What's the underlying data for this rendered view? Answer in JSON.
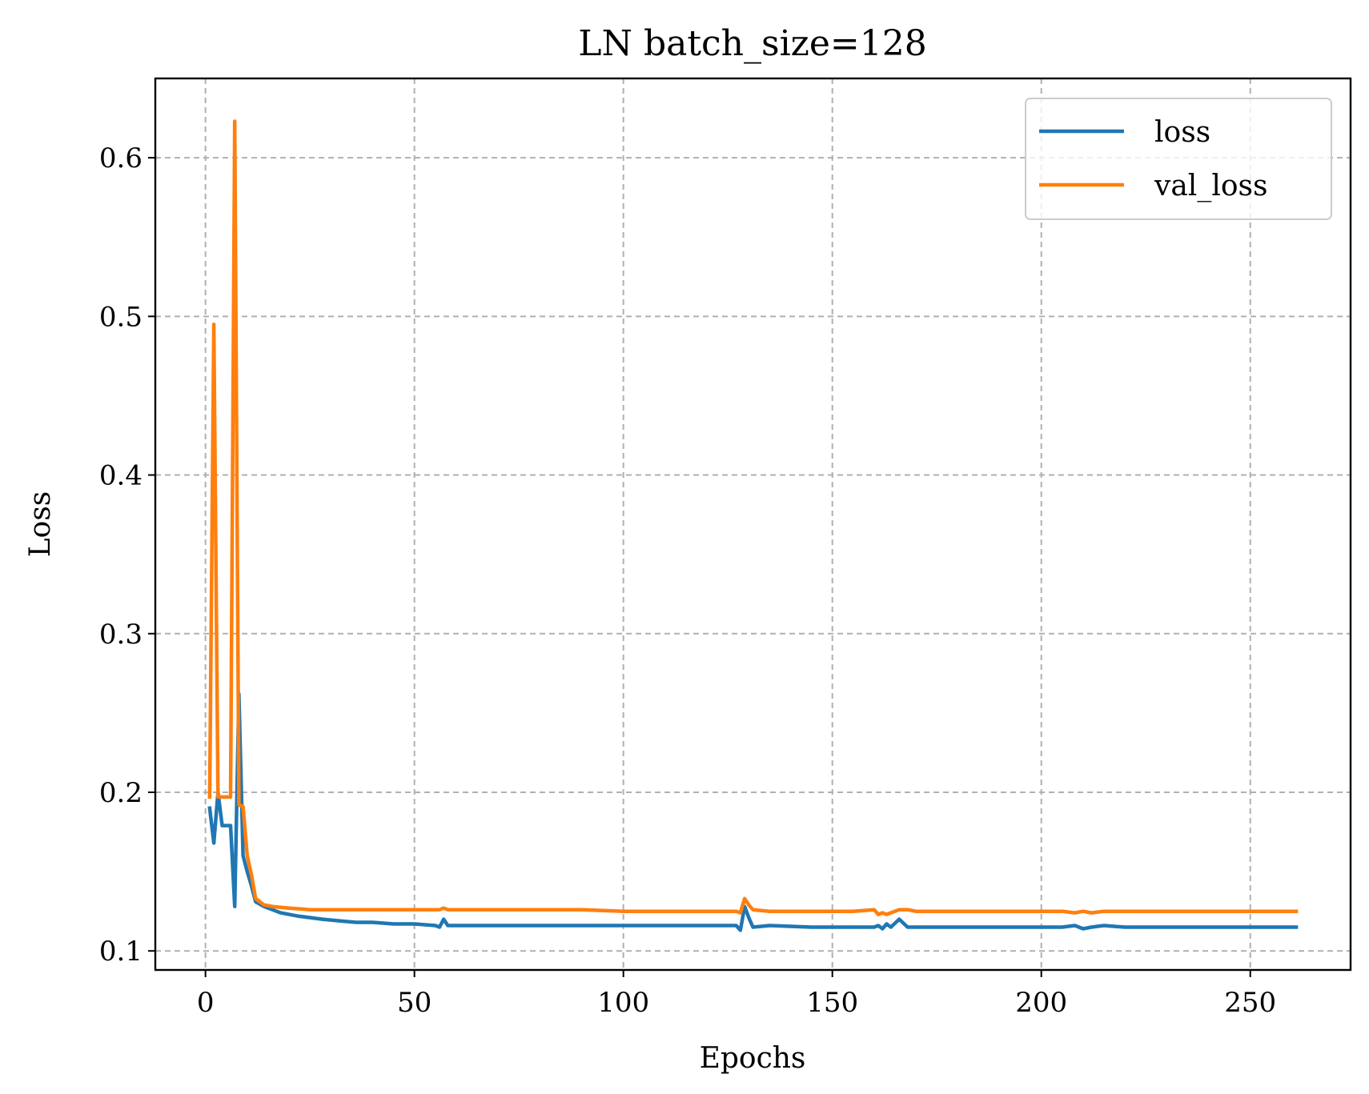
{
  "chart_data": {
    "type": "line",
    "title": "LN batch_size=128",
    "xlabel": "Epochs",
    "ylabel": "Loss",
    "xlim": [
      -12,
      274
    ],
    "ylim": [
      0.088,
      0.65
    ],
    "xticks": [
      0,
      50,
      100,
      150,
      200,
      250
    ],
    "yticks": [
      0.1,
      0.2,
      0.3,
      0.4,
      0.5,
      0.6
    ],
    "xtick_labels": [
      "0",
      "50",
      "100",
      "150",
      "200",
      "250"
    ],
    "ytick_labels": [
      "0.1",
      "0.2",
      "0.3",
      "0.4",
      "0.5",
      "0.6"
    ],
    "grid": true,
    "legend_position": "top-right",
    "series": [
      {
        "name": "loss",
        "color": "#1f77b4",
        "points": [
          [
            1,
            0.19
          ],
          [
            2,
            0.168
          ],
          [
            3,
            0.2
          ],
          [
            4,
            0.179
          ],
          [
            5,
            0.179
          ],
          [
            6,
            0.179
          ],
          [
            7,
            0.128
          ],
          [
            8,
            0.262
          ],
          [
            9,
            0.16
          ],
          [
            10,
            0.15
          ],
          [
            11,
            0.141
          ],
          [
            12,
            0.131
          ],
          [
            14,
            0.128
          ],
          [
            16,
            0.126
          ],
          [
            18,
            0.124
          ],
          [
            20,
            0.123
          ],
          [
            22,
            0.122
          ],
          [
            25,
            0.121
          ],
          [
            28,
            0.12
          ],
          [
            32,
            0.119
          ],
          [
            36,
            0.118
          ],
          [
            40,
            0.118
          ],
          [
            45,
            0.117
          ],
          [
            50,
            0.117
          ],
          [
            55,
            0.116
          ],
          [
            56,
            0.115
          ],
          [
            57,
            0.12
          ],
          [
            58,
            0.116
          ],
          [
            60,
            0.116
          ],
          [
            70,
            0.116
          ],
          [
            80,
            0.116
          ],
          [
            90,
            0.116
          ],
          [
            100,
            0.116
          ],
          [
            110,
            0.116
          ],
          [
            120,
            0.116
          ],
          [
            127,
            0.116
          ],
          [
            128,
            0.113
          ],
          [
            129,
            0.128
          ],
          [
            130,
            0.121
          ],
          [
            131,
            0.115
          ],
          [
            135,
            0.116
          ],
          [
            145,
            0.115
          ],
          [
            155,
            0.115
          ],
          [
            160,
            0.115
          ],
          [
            161,
            0.116
          ],
          [
            162,
            0.114
          ],
          [
            163,
            0.117
          ],
          [
            164,
            0.115
          ],
          [
            166,
            0.12
          ],
          [
            168,
            0.115
          ],
          [
            175,
            0.115
          ],
          [
            185,
            0.115
          ],
          [
            195,
            0.115
          ],
          [
            205,
            0.115
          ],
          [
            208,
            0.116
          ],
          [
            210,
            0.114
          ],
          [
            212,
            0.115
          ],
          [
            215,
            0.116
          ],
          [
            220,
            0.115
          ],
          [
            230,
            0.115
          ],
          [
            240,
            0.115
          ],
          [
            250,
            0.115
          ],
          [
            261,
            0.115
          ]
        ]
      },
      {
        "name": "val_loss",
        "color": "#ff7f0e",
        "points": [
          [
            1,
            0.197
          ],
          [
            2,
            0.495
          ],
          [
            3,
            0.197
          ],
          [
            4,
            0.197
          ],
          [
            5,
            0.197
          ],
          [
            6,
            0.197
          ],
          [
            7,
            0.623
          ],
          [
            8,
            0.192
          ],
          [
            9,
            0.191
          ],
          [
            10,
            0.16
          ],
          [
            11,
            0.148
          ],
          [
            12,
            0.133
          ],
          [
            14,
            0.129
          ],
          [
            16,
            0.128
          ],
          [
            20,
            0.127
          ],
          [
            25,
            0.126
          ],
          [
            30,
            0.126
          ],
          [
            40,
            0.126
          ],
          [
            50,
            0.126
          ],
          [
            56,
            0.126
          ],
          [
            57,
            0.127
          ],
          [
            58,
            0.126
          ],
          [
            70,
            0.126
          ],
          [
            80,
            0.126
          ],
          [
            90,
            0.126
          ],
          [
            100,
            0.125
          ],
          [
            110,
            0.125
          ],
          [
            120,
            0.125
          ],
          [
            127,
            0.125
          ],
          [
            128,
            0.124
          ],
          [
            129,
            0.133
          ],
          [
            130,
            0.129
          ],
          [
            131,
            0.126
          ],
          [
            135,
            0.125
          ],
          [
            145,
            0.125
          ],
          [
            155,
            0.125
          ],
          [
            160,
            0.126
          ],
          [
            161,
            0.123
          ],
          [
            162,
            0.124
          ],
          [
            163,
            0.123
          ],
          [
            164,
            0.124
          ],
          [
            166,
            0.126
          ],
          [
            168,
            0.126
          ],
          [
            170,
            0.125
          ],
          [
            180,
            0.125
          ],
          [
            190,
            0.125
          ],
          [
            200,
            0.125
          ],
          [
            205,
            0.125
          ],
          [
            208,
            0.124
          ],
          [
            210,
            0.125
          ],
          [
            212,
            0.124
          ],
          [
            215,
            0.125
          ],
          [
            220,
            0.125
          ],
          [
            230,
            0.125
          ],
          [
            240,
            0.125
          ],
          [
            250,
            0.125
          ],
          [
            261,
            0.125
          ]
        ]
      }
    ]
  }
}
